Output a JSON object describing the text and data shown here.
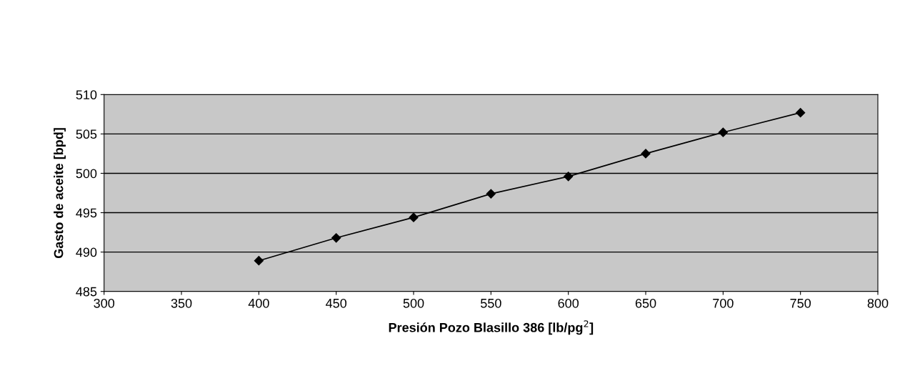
{
  "chart_data": {
    "type": "line",
    "xlabel": "Presión Pozo Blasillo 386 [lb/pg$^{2}$]",
    "ylabel": "Gasto de aceite [bpd]",
    "x": [
      400,
      450,
      500,
      550,
      600,
      650,
      700,
      750
    ],
    "series": [
      {
        "color": "#000000",
        "values": [
          488.9,
          491.8,
          494.4,
          497.4,
          499.6,
          502.5,
          505.2,
          507.7
        ]
      }
    ],
    "xlim": [
      300,
      800
    ],
    "xticks": [
      300,
      350,
      400,
      450,
      500,
      550,
      600,
      650,
      700,
      750,
      800
    ],
    "ylim": [
      485,
      510
    ],
    "yticks": [
      485,
      490,
      495,
      500,
      505,
      510
    ],
    "grid": "y",
    "marker": "diamond",
    "line_style": "solid",
    "legend": false
  }
}
